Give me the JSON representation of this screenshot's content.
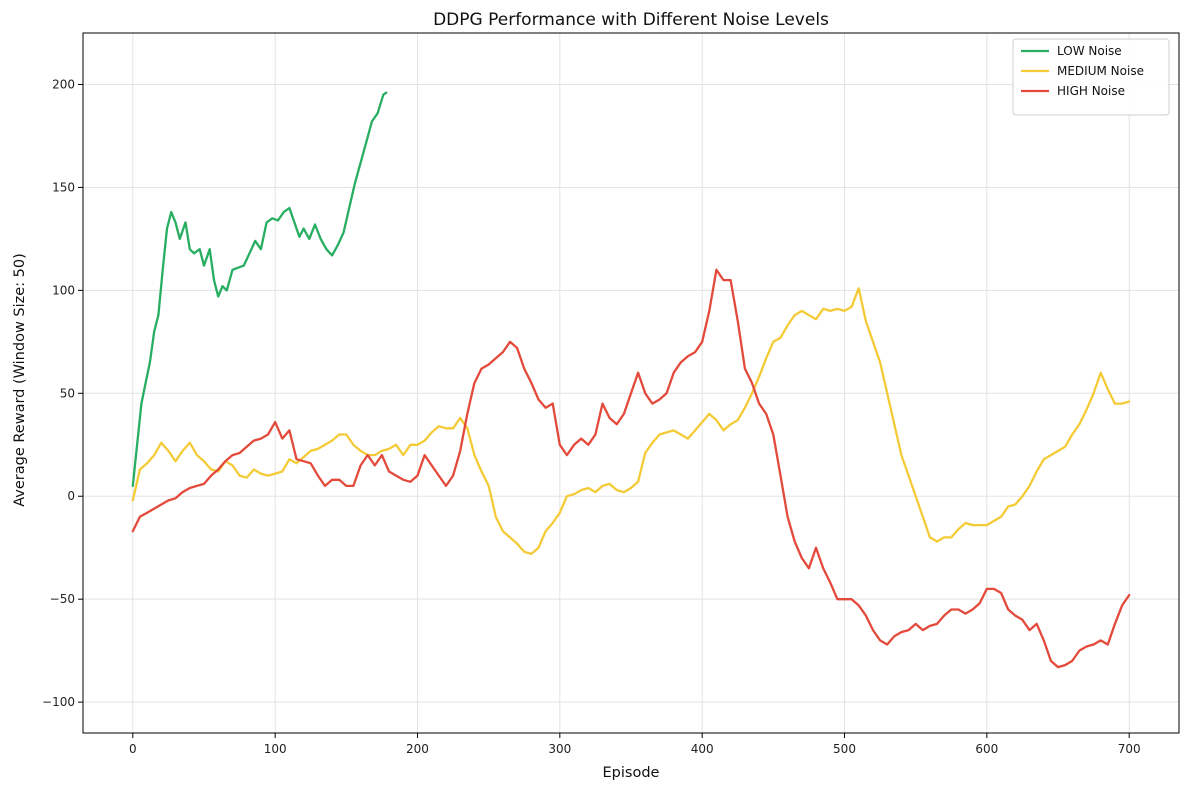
{
  "chart_data": {
    "type": "line",
    "title": "DDPG Performance with Different Noise Levels",
    "xlabel": "Episode",
    "ylabel": "Average Reward (Window Size: 50)",
    "xlim": [
      -35,
      735
    ],
    "ylim": [
      -115,
      225
    ],
    "xticks": [
      0,
      100,
      200,
      300,
      400,
      500,
      600,
      700
    ],
    "yticks": [
      -100,
      -50,
      0,
      50,
      100,
      150,
      200
    ],
    "grid": true,
    "legend_position": "top-right",
    "series": [
      {
        "name": "LOW Noise",
        "color": "#27ae60",
        "points": [
          [
            0,
            5
          ],
          [
            3,
            25
          ],
          [
            6,
            45
          ],
          [
            9,
            55
          ],
          [
            12,
            65
          ],
          [
            15,
            80
          ],
          [
            18,
            88
          ],
          [
            21,
            110
          ],
          [
            24,
            130
          ],
          [
            27,
            138
          ],
          [
            30,
            133
          ],
          [
            33,
            125
          ],
          [
            37,
            133
          ],
          [
            40,
            120
          ],
          [
            43,
            118
          ],
          [
            47,
            120
          ],
          [
            50,
            112
          ],
          [
            54,
            120
          ],
          [
            57,
            105
          ],
          [
            60,
            97
          ],
          [
            63,
            102
          ],
          [
            66,
            100
          ],
          [
            70,
            110
          ],
          [
            74,
            111
          ],
          [
            78,
            112
          ],
          [
            82,
            118
          ],
          [
            86,
            124
          ],
          [
            90,
            120
          ],
          [
            94,
            133
          ],
          [
            98,
            135
          ],
          [
            102,
            134
          ],
          [
            106,
            138
          ],
          [
            110,
            140
          ],
          [
            113,
            134
          ],
          [
            117,
            126
          ],
          [
            120,
            130
          ],
          [
            124,
            125
          ],
          [
            128,
            132
          ],
          [
            132,
            125
          ],
          [
            136,
            120
          ],
          [
            140,
            117
          ],
          [
            144,
            122
          ],
          [
            148,
            128
          ],
          [
            152,
            140
          ],
          [
            156,
            152
          ],
          [
            160,
            162
          ],
          [
            164,
            172
          ],
          [
            168,
            182
          ],
          [
            172,
            186
          ],
          [
            176,
            195
          ],
          [
            178,
            196
          ]
        ]
      },
      {
        "name": "MEDIUM Noise",
        "color": "#f4cb37",
        "points": [
          [
            0,
            -2
          ],
          [
            5,
            13
          ],
          [
            10,
            16
          ],
          [
            15,
            20
          ],
          [
            20,
            26
          ],
          [
            25,
            22
          ],
          [
            30,
            17
          ],
          [
            35,
            22
          ],
          [
            40,
            26
          ],
          [
            45,
            20
          ],
          [
            50,
            17
          ],
          [
            55,
            13
          ],
          [
            60,
            12
          ],
          [
            65,
            17
          ],
          [
            70,
            15
          ],
          [
            75,
            10
          ],
          [
            80,
            9
          ],
          [
            85,
            13
          ],
          [
            90,
            11
          ],
          [
            95,
            10
          ],
          [
            100,
            11
          ],
          [
            105,
            12
          ],
          [
            110,
            18
          ],
          [
            115,
            16
          ],
          [
            120,
            19
          ],
          [
            125,
            22
          ],
          [
            130,
            23
          ],
          [
            135,
            25
          ],
          [
            140,
            27
          ],
          [
            145,
            30
          ],
          [
            150,
            30
          ],
          [
            155,
            25
          ],
          [
            160,
            22
          ],
          [
            165,
            20
          ],
          [
            170,
            20
          ],
          [
            175,
            22
          ],
          [
            180,
            23
          ],
          [
            185,
            25
          ],
          [
            190,
            20
          ],
          [
            195,
            25
          ],
          [
            200,
            25
          ],
          [
            205,
            27
          ],
          [
            210,
            31
          ],
          [
            215,
            34
          ],
          [
            220,
            33
          ],
          [
            225,
            33
          ],
          [
            230,
            38
          ],
          [
            235,
            33
          ],
          [
            240,
            20
          ],
          [
            245,
            12
          ],
          [
            250,
            5
          ],
          [
            255,
            -10
          ],
          [
            260,
            -17
          ],
          [
            265,
            -20
          ],
          [
            270,
            -23
          ],
          [
            275,
            -27
          ],
          [
            280,
            -28
          ],
          [
            285,
            -25
          ],
          [
            290,
            -17
          ],
          [
            295,
            -13
          ],
          [
            300,
            -8
          ],
          [
            305,
            0
          ],
          [
            310,
            1
          ],
          [
            315,
            3
          ],
          [
            320,
            4
          ],
          [
            325,
            2
          ],
          [
            330,
            5
          ],
          [
            335,
            6
          ],
          [
            340,
            3
          ],
          [
            345,
            2
          ],
          [
            350,
            4
          ],
          [
            355,
            7
          ],
          [
            360,
            21
          ],
          [
            365,
            26
          ],
          [
            370,
            30
          ],
          [
            375,
            31
          ],
          [
            380,
            32
          ],
          [
            385,
            30
          ],
          [
            390,
            28
          ],
          [
            395,
            32
          ],
          [
            400,
            36
          ],
          [
            405,
            40
          ],
          [
            410,
            37
          ],
          [
            415,
            32
          ],
          [
            420,
            35
          ],
          [
            425,
            37
          ],
          [
            430,
            43
          ],
          [
            435,
            50
          ],
          [
            440,
            58
          ],
          [
            445,
            67
          ],
          [
            450,
            75
          ],
          [
            455,
            77
          ],
          [
            460,
            83
          ],
          [
            465,
            88
          ],
          [
            470,
            90
          ],
          [
            475,
            88
          ],
          [
            480,
            86
          ],
          [
            485,
            91
          ],
          [
            490,
            90
          ],
          [
            495,
            91
          ],
          [
            500,
            90
          ],
          [
            505,
            92
          ],
          [
            510,
            101
          ],
          [
            515,
            85
          ],
          [
            520,
            75
          ],
          [
            525,
            65
          ],
          [
            530,
            50
          ],
          [
            535,
            35
          ],
          [
            540,
            20
          ],
          [
            545,
            10
          ],
          [
            550,
            0
          ],
          [
            555,
            -10
          ],
          [
            560,
            -20
          ],
          [
            565,
            -22
          ],
          [
            570,
            -20
          ],
          [
            575,
            -20
          ],
          [
            580,
            -16
          ],
          [
            585,
            -13
          ],
          [
            590,
            -14
          ],
          [
            595,
            -14
          ],
          [
            600,
            -14
          ],
          [
            605,
            -12
          ],
          [
            610,
            -10
          ],
          [
            615,
            -5
          ],
          [
            620,
            -4
          ],
          [
            625,
            0
          ],
          [
            630,
            5
          ],
          [
            635,
            12
          ],
          [
            640,
            18
          ],
          [
            645,
            20
          ],
          [
            650,
            22
          ],
          [
            655,
            24
          ],
          [
            660,
            30
          ],
          [
            665,
            35
          ],
          [
            670,
            42
          ],
          [
            675,
            50
          ],
          [
            680,
            60
          ],
          [
            685,
            52
          ],
          [
            690,
            45
          ],
          [
            695,
            45
          ],
          [
            700,
            46
          ]
        ]
      },
      {
        "name": "HIGH Noise",
        "color": "#e34a3b",
        "points": [
          [
            0,
            -17
          ],
          [
            5,
            -10
          ],
          [
            10,
            -8
          ],
          [
            15,
            -6
          ],
          [
            20,
            -4
          ],
          [
            25,
            -2
          ],
          [
            30,
            -1
          ],
          [
            35,
            2
          ],
          [
            40,
            4
          ],
          [
            45,
            5
          ],
          [
            50,
            6
          ],
          [
            55,
            10
          ],
          [
            60,
            13
          ],
          [
            65,
            17
          ],
          [
            70,
            20
          ],
          [
            75,
            21
          ],
          [
            80,
            24
          ],
          [
            85,
            27
          ],
          [
            90,
            28
          ],
          [
            95,
            30
          ],
          [
            100,
            36
          ],
          [
            105,
            28
          ],
          [
            110,
            32
          ],
          [
            115,
            18
          ],
          [
            120,
            17
          ],
          [
            125,
            16
          ],
          [
            130,
            10
          ],
          [
            135,
            5
          ],
          [
            140,
            8
          ],
          [
            145,
            8
          ],
          [
            150,
            5
          ],
          [
            155,
            5
          ],
          [
            160,
            15
          ],
          [
            165,
            20
          ],
          [
            170,
            15
          ],
          [
            175,
            20
          ],
          [
            180,
            12
          ],
          [
            185,
            10
          ],
          [
            190,
            8
          ],
          [
            195,
            7
          ],
          [
            200,
            10
          ],
          [
            205,
            20
          ],
          [
            210,
            15
          ],
          [
            215,
            10
          ],
          [
            220,
            5
          ],
          [
            225,
            10
          ],
          [
            230,
            22
          ],
          [
            235,
            40
          ],
          [
            240,
            55
          ],
          [
            245,
            62
          ],
          [
            250,
            64
          ],
          [
            255,
            67
          ],
          [
            260,
            70
          ],
          [
            265,
            75
          ],
          [
            270,
            72
          ],
          [
            275,
            62
          ],
          [
            280,
            55
          ],
          [
            285,
            47
          ],
          [
            290,
            43
          ],
          [
            295,
            45
          ],
          [
            300,
            25
          ],
          [
            305,
            20
          ],
          [
            310,
            25
          ],
          [
            315,
            28
          ],
          [
            320,
            25
          ],
          [
            325,
            30
          ],
          [
            330,
            45
          ],
          [
            335,
            38
          ],
          [
            340,
            35
          ],
          [
            345,
            40
          ],
          [
            350,
            50
          ],
          [
            355,
            60
          ],
          [
            360,
            50
          ],
          [
            365,
            45
          ],
          [
            370,
            47
          ],
          [
            375,
            50
          ],
          [
            380,
            60
          ],
          [
            385,
            65
          ],
          [
            390,
            68
          ],
          [
            395,
            70
          ],
          [
            400,
            75
          ],
          [
            405,
            90
          ],
          [
            410,
            110
          ],
          [
            415,
            105
          ],
          [
            420,
            105
          ],
          [
            425,
            85
          ],
          [
            430,
            62
          ],
          [
            435,
            55
          ],
          [
            440,
            45
          ],
          [
            445,
            40
          ],
          [
            450,
            30
          ],
          [
            455,
            10
          ],
          [
            460,
            -10
          ],
          [
            465,
            -22
          ],
          [
            470,
            -30
          ],
          [
            475,
            -35
          ],
          [
            480,
            -25
          ],
          [
            485,
            -35
          ],
          [
            490,
            -42
          ],
          [
            495,
            -50
          ],
          [
            500,
            -50
          ],
          [
            505,
            -50
          ],
          [
            510,
            -53
          ],
          [
            515,
            -58
          ],
          [
            520,
            -65
          ],
          [
            525,
            -70
          ],
          [
            530,
            -72
          ],
          [
            535,
            -68
          ],
          [
            540,
            -66
          ],
          [
            545,
            -65
          ],
          [
            550,
            -62
          ],
          [
            555,
            -65
          ],
          [
            560,
            -63
          ],
          [
            565,
            -62
          ],
          [
            570,
            -58
          ],
          [
            575,
            -55
          ],
          [
            580,
            -55
          ],
          [
            585,
            -57
          ],
          [
            590,
            -55
          ],
          [
            595,
            -52
          ],
          [
            600,
            -45
          ],
          [
            605,
            -45
          ],
          [
            610,
            -47
          ],
          [
            615,
            -55
          ],
          [
            620,
            -58
          ],
          [
            625,
            -60
          ],
          [
            630,
            -65
          ],
          [
            635,
            -62
          ],
          [
            640,
            -70
          ],
          [
            645,
            -80
          ],
          [
            650,
            -83
          ],
          [
            655,
            -82
          ],
          [
            660,
            -80
          ],
          [
            665,
            -75
          ],
          [
            670,
            -73
          ],
          [
            675,
            -72
          ],
          [
            680,
            -70
          ],
          [
            685,
            -72
          ],
          [
            690,
            -62
          ],
          [
            695,
            -53
          ],
          [
            700,
            -48
          ]
        ]
      }
    ]
  }
}
